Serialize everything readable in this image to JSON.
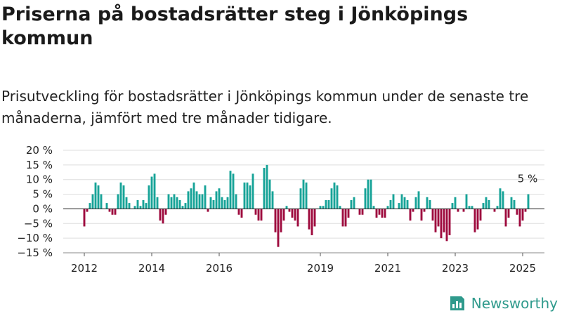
{
  "title": "Priserna på bostadsrätter steg i Jönköpings kommun",
  "subtitle": "Prisutveckling för bostadsrätter i Jönköpings kommun under de senaste tre månaderna, jämfört med tre månader tidigare.",
  "brand": {
    "name": "Newsworthy",
    "icon": "newsworthy-chart-logo-icon"
  },
  "colors": {
    "positive": "#17a398",
    "negative": "#9e0b3e",
    "text": "#1a1a1a",
    "grid": "#dddddd"
  },
  "chart_data": {
    "type": "bar",
    "title": "",
    "xlabel": "",
    "ylabel": "",
    "ylim": [
      -15,
      20
    ],
    "yticks": [
      -15,
      -10,
      -5,
      0,
      5,
      10,
      15,
      20
    ],
    "ytick_labels": [
      "−15 %",
      "−10 %",
      "−5 %",
      "0 %",
      "5 %",
      "10 %",
      "15 %",
      "20 %"
    ],
    "xticks": [
      {
        "year": 2012,
        "label": "2012"
      },
      {
        "year": 2014,
        "label": "2014"
      },
      {
        "year": 2016,
        "label": "2016"
      },
      {
        "year": 2019,
        "label": "2019"
      },
      {
        "year": 2021,
        "label": "2021"
      },
      {
        "year": 2023,
        "label": "2023"
      },
      {
        "year": 2025,
        "label": "2025"
      }
    ],
    "start": "2012-01",
    "frequency": "monthly",
    "grid": true,
    "last_value_label": "5 %",
    "values": [
      -6,
      -1,
      2,
      5,
      9,
      8,
      5,
      0,
      2,
      -1,
      -2,
      -2,
      5,
      9,
      8,
      4,
      2,
      0,
      1,
      3,
      1,
      3,
      2,
      8,
      11,
      12,
      4,
      -4,
      -5,
      -2,
      5,
      4,
      5,
      4,
      3,
      1,
      2,
      6,
      7,
      9,
      6,
      5,
      5,
      8,
      -1,
      4,
      3,
      6,
      7,
      4,
      3,
      4,
      13,
      12,
      5,
      -2,
      -3,
      9,
      9,
      8,
      12,
      -2,
      -4,
      -4,
      14,
      15,
      10,
      6,
      -8,
      -13,
      -8,
      -4,
      1,
      -1,
      -3,
      -4,
      -6,
      7,
      10,
      9,
      -7,
      -9,
      -6,
      0,
      1,
      1,
      3,
      3,
      7,
      9,
      8,
      1,
      -6,
      -6,
      -3,
      3,
      4,
      0,
      -2,
      -2,
      7,
      10,
      10,
      1,
      -3,
      -2,
      -3,
      -3,
      1,
      3,
      5,
      0,
      2,
      5,
      4,
      3,
      -4,
      -1,
      4,
      6,
      -4,
      -1,
      4,
      3,
      -4,
      -8,
      -6,
      -10,
      -8,
      -11,
      -9,
      2,
      4,
      -1,
      0,
      -1,
      5,
      1,
      1,
      -8,
      -7,
      -4,
      2,
      4,
      3,
      0,
      -1,
      1,
      7,
      6,
      -6,
      -3,
      4,
      3,
      -2,
      -6,
      -4,
      -1,
      5
    ]
  }
}
